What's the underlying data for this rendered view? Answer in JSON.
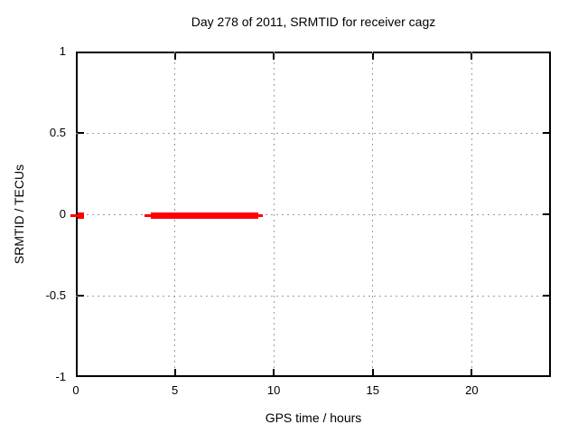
{
  "chart_data": {
    "type": "scatter",
    "title": "Day 278 of 2011, SRMTID for receiver cagz",
    "xlabel": "GPS time / hours",
    "ylabel": "SRMTID / TECUs",
    "xlim": [
      0,
      24
    ],
    "ylim": [
      -1,
      1
    ],
    "xticks": [
      {
        "label": "0",
        "value": 0
      },
      {
        "label": "5",
        "value": 5
      },
      {
        "label": "10",
        "value": 10
      },
      {
        "label": "15",
        "value": 15
      },
      {
        "label": "20",
        "value": 20
      }
    ],
    "yticks": [
      {
        "label": "1",
        "value": 1
      },
      {
        "label": "0.5",
        "value": 0.5
      },
      {
        "label": "0",
        "value": 0
      },
      {
        "label": "-0.5",
        "value": -0.5
      },
      {
        "label": "-1",
        "value": -1
      }
    ],
    "grid": "dotted",
    "legend": "none",
    "colors": {
      "series": "#ff0000",
      "grid": "#9c9c9c",
      "axis": "#000000",
      "background": "#ffffff"
    },
    "series": [
      {
        "name": "SRMTID",
        "color": "#ff0000",
        "y_value": 0,
        "marks": [
          {
            "shape": "line",
            "x1": -0.27,
            "x2": 0.09,
            "y": 0
          },
          {
            "shape": "square",
            "x": 0.25,
            "y": 0
          },
          {
            "shape": "line",
            "x1": 3.47,
            "x2": 3.79,
            "y": 0
          },
          {
            "shape": "band",
            "x1": 3.79,
            "x2": 9.22,
            "y": 0
          },
          {
            "shape": "line",
            "x1": 9.22,
            "x2": 9.45,
            "y": 0
          }
        ]
      }
    ]
  }
}
